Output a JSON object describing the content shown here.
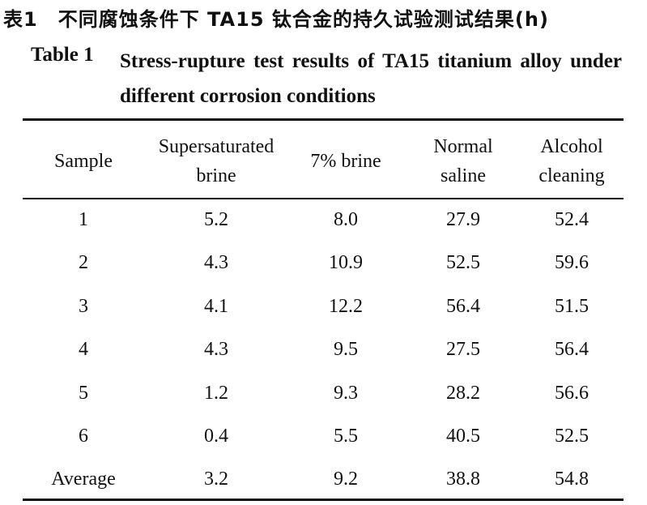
{
  "caption": {
    "chinese": "表1　不同腐蚀条件下 TA15 钛合金的持久试验测试结果(h)",
    "label": "Table 1",
    "title": "Stress-rupture test results of TA15 titanium alloy under different corrosion conditions"
  },
  "table": {
    "header": [
      "Sample",
      "Supersaturated brine",
      "7% brine",
      "Normal saline",
      "Alcohol cleaning"
    ],
    "rows": [
      [
        "1",
        "5.2",
        "8.0",
        "27.9",
        "52.4"
      ],
      [
        "2",
        "4.3",
        "10.9",
        "52.5",
        "59.6"
      ],
      [
        "3",
        "4.1",
        "12.2",
        "56.4",
        "51.5"
      ],
      [
        "4",
        "4.3",
        "9.5",
        "27.5",
        "56.4"
      ],
      [
        "5",
        "1.2",
        "9.3",
        "28.2",
        "56.6"
      ],
      [
        "6",
        "0.4",
        "5.5",
        "40.5",
        "52.5"
      ],
      [
        "Average",
        "3.2",
        "9.2",
        "38.8",
        "54.8"
      ]
    ]
  }
}
